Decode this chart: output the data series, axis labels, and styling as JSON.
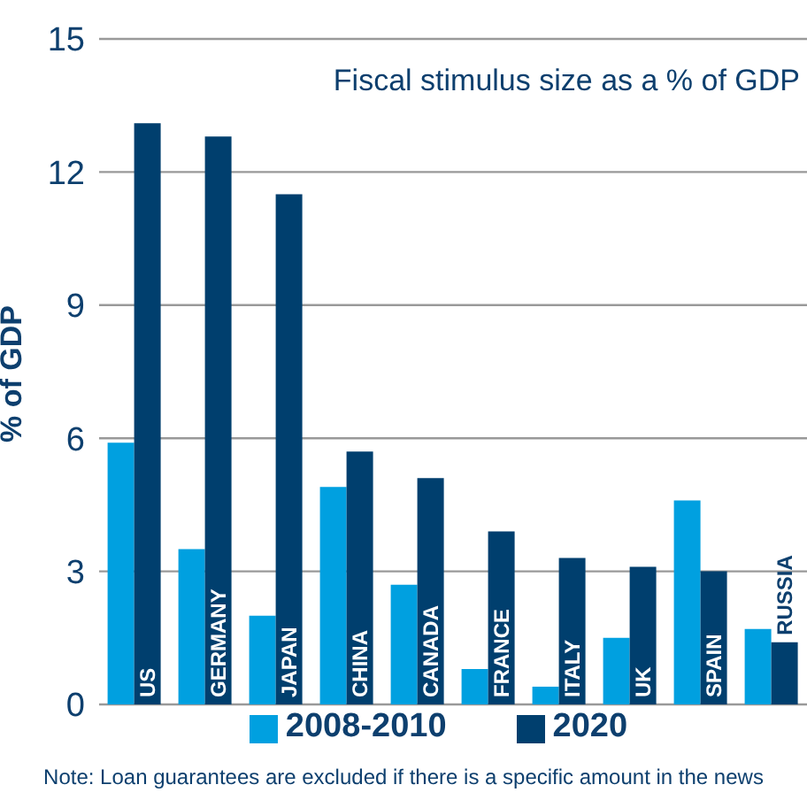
{
  "chart_data": {
    "type": "bar",
    "title": "Fiscal stimulus size as a % of GDP",
    "ylabel": "% of GDP",
    "categories": [
      "US",
      "GERMANY",
      "JAPAN",
      "CHINA",
      "CANADA",
      "FRANCE",
      "ITALY",
      "UK",
      "SPAIN",
      "RUSSIA"
    ],
    "series": [
      {
        "name": "2008-2010",
        "color": "#00a0e0",
        "values": [
          5.9,
          3.5,
          2.0,
          4.9,
          2.7,
          0.8,
          0.4,
          1.5,
          4.6,
          1.7
        ]
      },
      {
        "name": "2020",
        "color": "#003f6e",
        "values": [
          13.1,
          12.8,
          11.5,
          5.7,
          5.1,
          3.9,
          3.3,
          3.1,
          3.0,
          1.4
        ]
      }
    ],
    "ylim": [
      0,
      15
    ],
    "yticks": [
      0,
      3,
      6,
      9,
      12,
      15
    ],
    "grid": "y",
    "legend": "bottom",
    "annotations": [
      "Note: Loan guarantees are excluded if there is a specific amount in the news"
    ]
  }
}
